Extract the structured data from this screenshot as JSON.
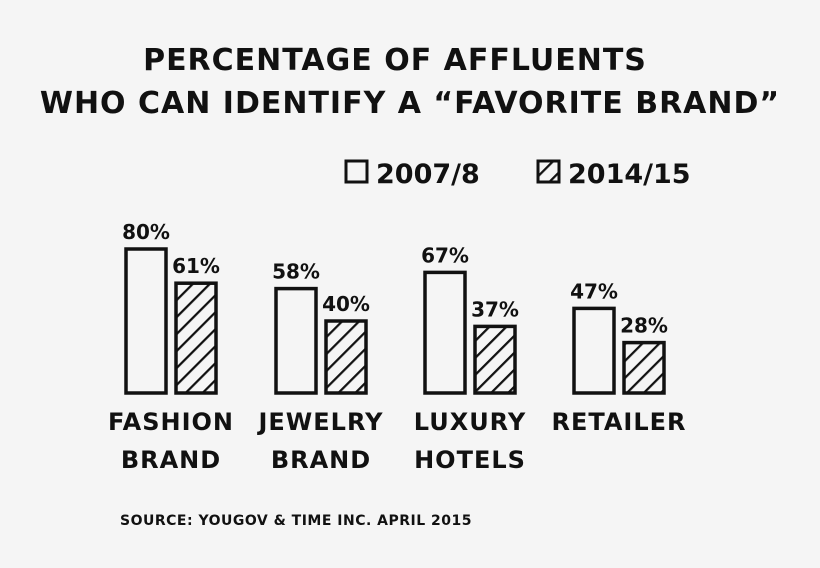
{
  "chart_data": {
    "type": "bar",
    "title_lines": [
      "PERCENTAGE OF AFFLUENTS",
      "WHO CAN IDENTIFY A “FAVORITE BRAND”"
    ],
    "categories": [
      [
        "FASHION",
        "BRAND"
      ],
      [
        "JEWELRY",
        "BRAND"
      ],
      [
        "LUXURY",
        "HOTELS"
      ],
      [
        "RETAILER"
      ]
    ],
    "series": [
      {
        "name": "2007/8",
        "pattern": "empty",
        "values": [
          80,
          58,
          67,
          47
        ],
        "labels": [
          "80%",
          "58%",
          "67%",
          "47%"
        ]
      },
      {
        "name": "2014/15",
        "pattern": "hatched",
        "values": [
          61,
          40,
          37,
          28
        ],
        "labels": [
          "61%",
          "40%",
          "37%",
          "28%"
        ]
      }
    ],
    "ylim": [
      0,
      100
    ],
    "grid": false,
    "legend_position": "top-right",
    "source": "SOURCE: YOUGOV & TIME INC. APRIL 2015",
    "colors": {
      "background": "#f5f5f5",
      "ink": "#111111"
    }
  }
}
